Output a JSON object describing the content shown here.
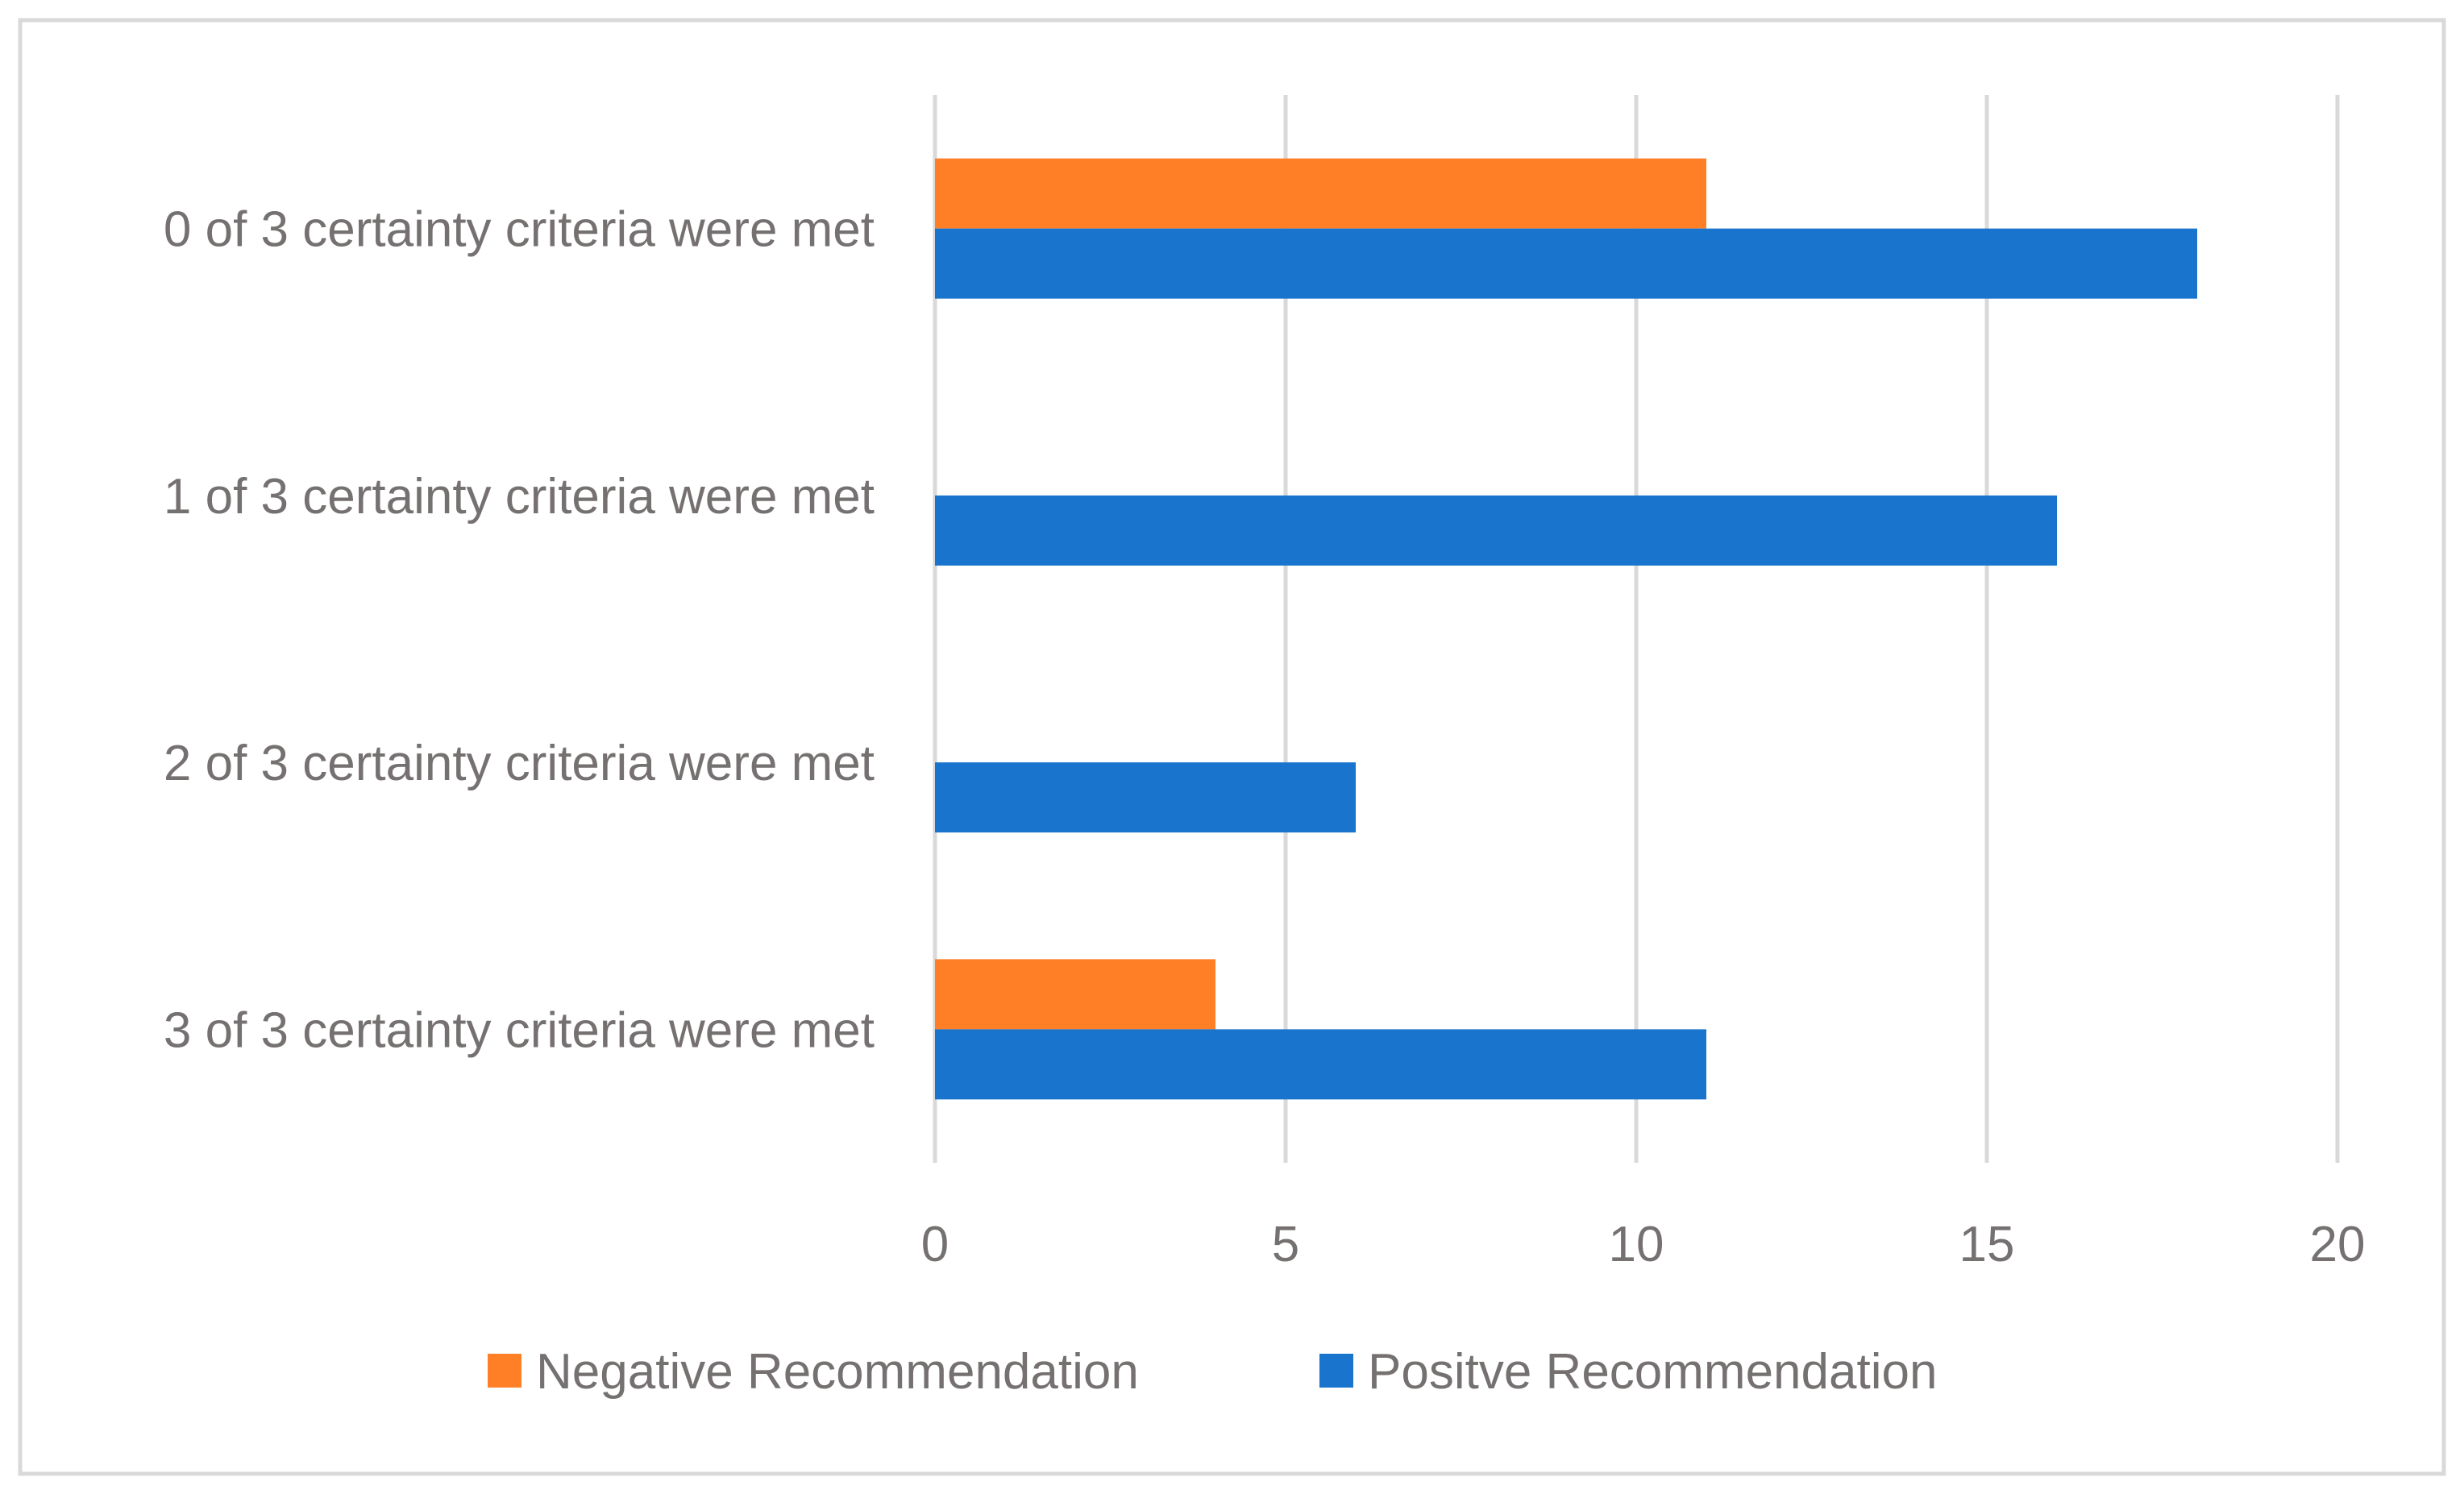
{
  "chart_data": {
    "type": "bar",
    "orientation": "horizontal",
    "title": "",
    "xlabel": "",
    "ylabel": "",
    "categories": [
      "0 of 3 certainty criteria were met",
      "1 of 3 certainty criteria were met",
      "2 of 3 certainty criteria were met",
      "3 of 3 certainty criteria were met"
    ],
    "series": [
      {
        "name": "Negative Recommendation",
        "color": "#FF7F27",
        "values": [
          11,
          0,
          0,
          4
        ]
      },
      {
        "name": "Positve Recommendation",
        "color": "#1874CD",
        "values": [
          18,
          16,
          6,
          11
        ]
      }
    ],
    "xlim": [
      0,
      20
    ],
    "x_ticks": [
      "0",
      "5",
      "10",
      "15",
      "20"
    ],
    "grid": true,
    "legend": "bottom"
  },
  "colors": {
    "gridline": "#D9D9D9",
    "text": "#767171",
    "border": "#D9D9D9"
  }
}
